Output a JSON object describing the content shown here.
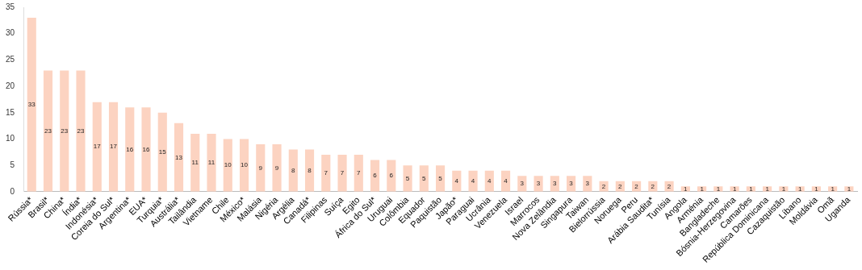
{
  "chart_data": {
    "type": "bar",
    "categories": [
      "Rússia*",
      "Brasil*",
      "China*",
      "Índia*",
      "Indonésia*",
      "Coreia do Sul*",
      "Argentina*",
      "EUA*",
      "Turquia*",
      "Austrália*",
      "Tailândia",
      "Vietname",
      "Chile",
      "México*",
      "Malásia",
      "Nigéria",
      "Argélia",
      "Canadá*",
      "Filipinas",
      "Suíça",
      "Egito",
      "África do Sul*",
      "Uruguai",
      "Colômbia",
      "Equador",
      "Paquistão",
      "Japão*",
      "Paraguai",
      "Ucrânia",
      "Venezuela",
      "Israel",
      "Marrocos",
      "Nova Zelândia",
      "Singapura",
      "Taiwan",
      "Bielorrússia",
      "Noruega",
      "Peru",
      "Arábia Saudita*",
      "Tunísia",
      "Angola",
      "Arménia",
      "Bangladeche",
      "Bósnia-Herzegovina",
      "Camarões",
      "República Dominicana",
      "Cazaquistão",
      "Líbano",
      "Moldávia",
      "Omã",
      "Uganda"
    ],
    "values": [
      33,
      23,
      23,
      23,
      17,
      17,
      16,
      16,
      15,
      13,
      11,
      11,
      10,
      10,
      9,
      9,
      8,
      8,
      7,
      7,
      7,
      6,
      6,
      5,
      5,
      5,
      4,
      4,
      4,
      4,
      3,
      3,
      3,
      3,
      3,
      2,
      2,
      2,
      2,
      2,
      1,
      1,
      1,
      1,
      1,
      1,
      1,
      1,
      1,
      1,
      1
    ],
    "color": "#fcd3c1",
    "ylim": [
      0,
      35
    ],
    "yticks": [
      0,
      5,
      10,
      15,
      20,
      25,
      30,
      35
    ],
    "grid": false,
    "data_labels": true
  }
}
